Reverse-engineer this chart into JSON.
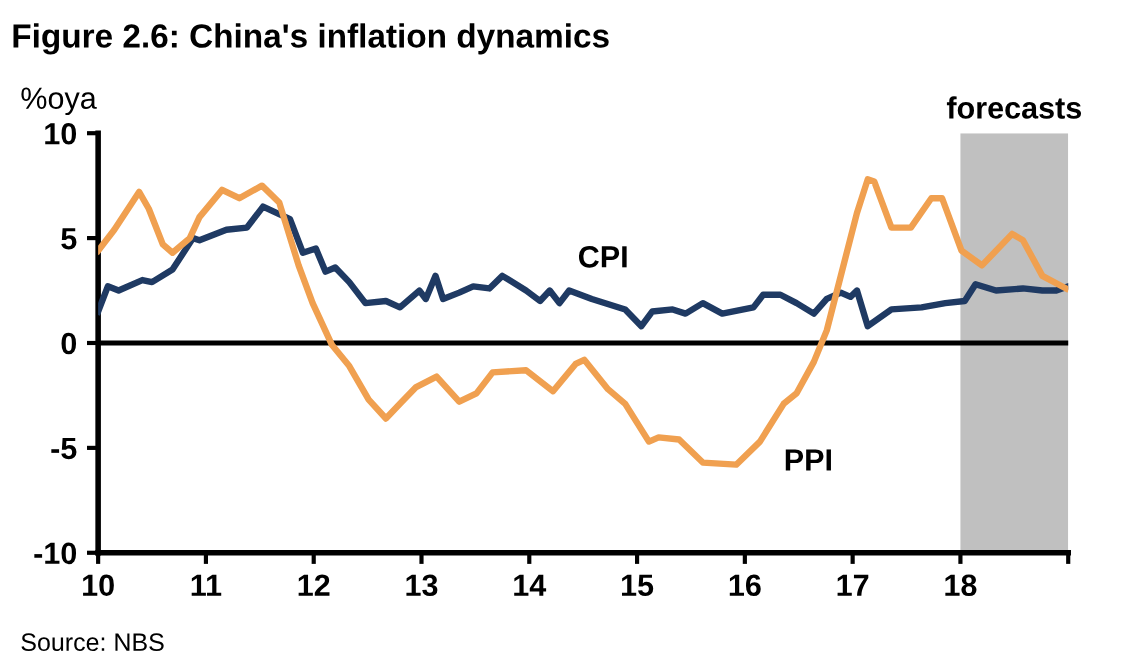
{
  "chart_data": {
    "type": "line",
    "title": "Figure 2.6: China's inflation dynamics",
    "ylabel": "%oya",
    "xlim": [
      10,
      19
    ],
    "xticks": [
      10,
      11,
      12,
      13,
      14,
      15,
      16,
      17,
      18,
      {
        "value": 19,
        "label": null
      }
    ],
    "ylim": [
      -10,
      10
    ],
    "yticks": [
      -10,
      -5,
      0,
      5,
      10
    ],
    "grid": false,
    "legend": false,
    "marker": "none",
    "line_style": "solid",
    "ref_lines": [
      {
        "axis": "y",
        "value": 0,
        "color": "#000000"
      }
    ],
    "bands": [
      {
        "axis": "x",
        "from": 18,
        "to": 19,
        "label": "forecasts",
        "color": "#c0c0c0"
      }
    ],
    "annotations": [
      "Source: NBS"
    ],
    "series": [
      {
        "name": "CPI",
        "color": "#1f3a63",
        "x": [
          10.0,
          10.09,
          10.19,
          10.41,
          10.5,
          10.69,
          10.88,
          10.94,
          11.19,
          11.38,
          11.53,
          11.78,
          11.9,
          12.02,
          12.11,
          12.2,
          12.33,
          12.48,
          12.67,
          12.8,
          12.98,
          13.04,
          13.13,
          13.2,
          13.35,
          13.48,
          13.63,
          13.75,
          13.97,
          14.1,
          14.19,
          14.28,
          14.37,
          14.58,
          14.89,
          15.04,
          15.14,
          15.33,
          15.45,
          15.61,
          15.79,
          16.08,
          16.17,
          16.33,
          16.48,
          16.64,
          16.76,
          16.89,
          16.98,
          17.04,
          17.14,
          17.36,
          17.64,
          17.86,
          18.04,
          18.14,
          18.33,
          18.58,
          18.76,
          18.89,
          19.0
        ],
        "values": [
          1.5,
          2.7,
          2.5,
          3.0,
          2.9,
          3.5,
          5.0,
          4.9,
          5.4,
          5.5,
          6.5,
          5.9,
          4.3,
          4.5,
          3.4,
          3.6,
          2.9,
          1.9,
          2.0,
          1.7,
          2.5,
          2.1,
          3.2,
          2.1,
          2.4,
          2.7,
          2.6,
          3.2,
          2.5,
          2.0,
          2.5,
          1.9,
          2.5,
          2.1,
          1.6,
          0.8,
          1.5,
          1.6,
          1.4,
          1.9,
          1.4,
          1.7,
          2.3,
          2.3,
          1.9,
          1.4,
          2.1,
          2.4,
          2.2,
          2.5,
          0.8,
          1.6,
          1.7,
          1.9,
          2.0,
          2.8,
          2.5,
          2.6,
          2.5,
          2.5,
          2.7
        ]
      },
      {
        "name": "PPI",
        "color": "#f0a050",
        "x": [
          10.0,
          10.15,
          10.38,
          10.47,
          10.6,
          10.69,
          10.85,
          10.94,
          11.15,
          11.31,
          11.52,
          11.68,
          11.86,
          11.99,
          12.17,
          12.33,
          12.51,
          12.67,
          12.8,
          12.95,
          13.14,
          13.35,
          13.51,
          13.66,
          13.97,
          14.22,
          14.43,
          14.51,
          14.73,
          14.89,
          15.11,
          15.2,
          15.39,
          15.61,
          15.92,
          16.14,
          16.36,
          16.48,
          16.64,
          16.76,
          16.89,
          17.04,
          17.14,
          17.2,
          17.36,
          17.54,
          17.73,
          17.83,
          18.01,
          18.2,
          18.48,
          18.58,
          18.76,
          18.98
        ],
        "values": [
          4.4,
          5.4,
          7.2,
          6.4,
          4.7,
          4.3,
          5.0,
          6.0,
          7.3,
          6.9,
          7.5,
          6.7,
          3.7,
          1.9,
          -0.1,
          -1.1,
          -2.7,
          -3.6,
          -2.9,
          -2.1,
          -1.6,
          -2.8,
          -2.4,
          -1.4,
          -1.3,
          -2.3,
          -1.0,
          -0.8,
          -2.2,
          -2.9,
          -4.7,
          -4.5,
          -4.6,
          -5.7,
          -5.8,
          -4.7,
          -2.9,
          -2.4,
          -0.9,
          0.6,
          3.2,
          6.2,
          7.8,
          7.7,
          5.5,
          5.5,
          6.9,
          6.9,
          4.4,
          3.7,
          5.2,
          4.9,
          3.2,
          2.6
        ]
      }
    ]
  }
}
